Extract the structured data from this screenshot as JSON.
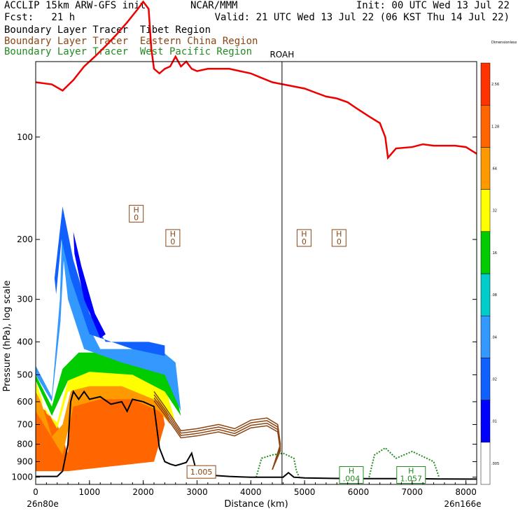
{
  "header": {
    "model": "ACCLIP 15km ARW-GFS init",
    "org": "NCAR/MMM",
    "init": "Init: 00 UTC Wed 13 Jul 22",
    "fcst": "Fcst:   21 h",
    "valid": "Valid: 21 UTC Wed 13 Jul 22 (06 KST Thu 14 Jul 22)",
    "line1": "Boundary Layer Tracer  Tibet Region",
    "line2": "Boundary Layer Tracer  Eastern China Region",
    "line3": "Boundary Layer Tracer  West Pacific Region"
  },
  "colors": {
    "line1": "#000000",
    "line2": "#8b4513",
    "line3": "#228b22",
    "tropopause": "#ee0000"
  },
  "chart_data": {
    "type": "area",
    "xlabel": "Distance (km)",
    "ylabel": "Pressure (hPa), log scale",
    "x_ticks": [
      0,
      1000,
      2000,
      3000,
      4000,
      5000,
      6000,
      7000,
      8000
    ],
    "x_range": [
      0,
      8200
    ],
    "y_range": [
      1050,
      60
    ],
    "y_ticks": [
      100,
      200,
      300,
      400,
      500,
      600,
      700,
      800,
      900,
      1000
    ],
    "left_end": "26n80e",
    "right_end": "26n166e",
    "marker": {
      "label": "ROAH",
      "x": 4580
    },
    "colorbar": {
      "levels": [
        ".005",
        ".01",
        ".02",
        ".04",
        ".08",
        ".16",
        ".32",
        ".64",
        "1.28",
        "2.56",
        "Dimensionless"
      ],
      "colors": [
        "#ffffff",
        "#0000ff",
        "#1060ff",
        "#3399ff",
        "#00cccc",
        "#00cc00",
        "#ffff00",
        "#ff9900",
        "#ff6600",
        "#ff3300"
      ]
    },
    "tropopause": {
      "x": [
        0,
        300,
        500,
        700,
        900,
        1100,
        1300,
        1500,
        1700,
        1900,
        2000,
        2100,
        2150,
        2200,
        2300,
        2400,
        2500,
        2600,
        2700,
        2800,
        2900,
        3000,
        3200,
        3400,
        3600,
        3800,
        4000,
        4200,
        4400,
        4600,
        4800,
        5000,
        5200,
        5400,
        5600,
        5800,
        6000,
        6200,
        6400,
        6500,
        6550,
        6700,
        7000,
        7200,
        7400,
        7600,
        7800,
        8000,
        8200
      ],
      "p": [
        69,
        70,
        73,
        68,
        62,
        58,
        54,
        50,
        46,
        42,
        40,
        42,
        55,
        63,
        65,
        63,
        62,
        58,
        62,
        60,
        63,
        64,
        63,
        63,
        63,
        64,
        65,
        67,
        69,
        70,
        71,
        72,
        74,
        76,
        77,
        79,
        83,
        87,
        91,
        100,
        115,
        108,
        107,
        105,
        106,
        106,
        106,
        107,
        112
      ]
    },
    "terrain": {
      "x": [
        0,
        100,
        300,
        400,
        500,
        600,
        650,
        700,
        800,
        900,
        1000,
        1200,
        1400,
        1600,
        1700,
        1800,
        2000,
        2100,
        2200,
        2300,
        2400,
        2500,
        2600,
        2800,
        2900,
        3000,
        3200,
        3400,
        3600,
        3800,
        4000,
        4200,
        4400,
        4600,
        4700,
        4800,
        5000,
        5500,
        6000,
        6500,
        7000,
        7500,
        8000,
        8200
      ],
      "p": [
        995,
        995,
        995,
        995,
        960,
        800,
        600,
        560,
        590,
        560,
        590,
        580,
        610,
        600,
        640,
        590,
        600,
        610,
        620,
        820,
        900,
        915,
        925,
        905,
        850,
        975,
        985,
        990,
        995,
        998,
        1000,
        1000,
        1000,
        1000,
        970,
        1000,
        1005,
        1008,
        1010,
        1010,
        1010,
        1012,
        1013,
        1013
      ]
    },
    "highs_brown": [
      {
        "label": "H\n0",
        "x": 1870,
        "p": 168
      },
      {
        "label": "H\n0",
        "x": 2550,
        "p": 198
      },
      {
        "label": "H\n0",
        "x": 4990,
        "p": 198
      },
      {
        "label": "H\n0",
        "x": 5640,
        "p": 198
      },
      {
        "label": "1.005",
        "x": 3080,
        "p": 965
      }
    ],
    "highs_green": [
      {
        "label": "H\n.004",
        "x": 5870,
        "p": 985
      },
      {
        "label": "H\n1.057",
        "x": 6980,
        "p": 985
      }
    ]
  }
}
